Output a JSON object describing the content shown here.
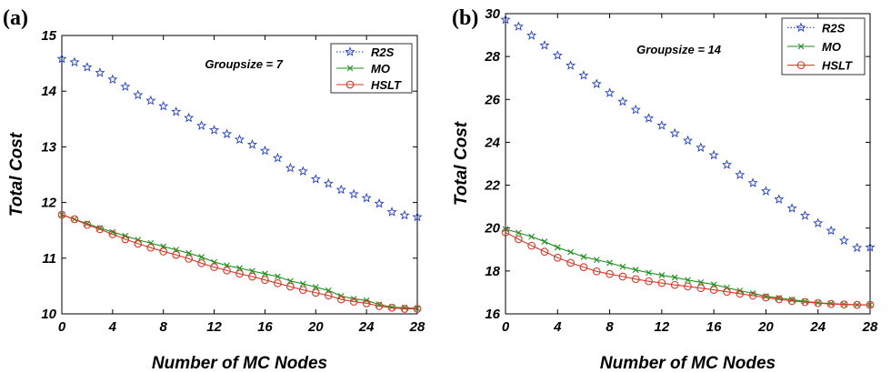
{
  "chart_data": [
    {
      "type": "line",
      "panel_label": "(a)",
      "annotation": "Groupsize = 7",
      "xlabel": "Number of MC Nodes",
      "ylabel": "Total Cost",
      "xlim": [
        0,
        28
      ],
      "ylim": [
        10,
        15
      ],
      "xticks": [
        0,
        4,
        8,
        12,
        16,
        20,
        24,
        28
      ],
      "yticks": [
        10,
        11,
        12,
        13,
        14,
        15
      ],
      "legend_position": "top-right",
      "x": [
        0,
        1,
        2,
        3,
        4,
        5,
        6,
        7,
        8,
        9,
        10,
        11,
        12,
        13,
        14,
        15,
        16,
        17,
        18,
        19,
        20,
        21,
        22,
        23,
        24,
        25,
        26,
        27,
        28
      ],
      "series": [
        {
          "name": "R2S",
          "marker": "star",
          "color": "#1f3fbf",
          "line": "dotted",
          "values": [
            14.58,
            14.52,
            14.43,
            14.33,
            14.21,
            14.08,
            13.93,
            13.83,
            13.73,
            13.63,
            13.52,
            13.38,
            13.3,
            13.23,
            13.13,
            13.04,
            12.93,
            12.8,
            12.62,
            12.56,
            12.42,
            12.34,
            12.23,
            12.15,
            12.08,
            11.98,
            11.83,
            11.77,
            11.74
          ]
        },
        {
          "name": "MO",
          "marker": "x",
          "color": "#1e8f1e",
          "line": "solid",
          "values": [
            11.78,
            11.7,
            11.62,
            11.54,
            11.47,
            11.4,
            11.33,
            11.27,
            11.21,
            11.15,
            11.09,
            11.02,
            10.93,
            10.87,
            10.82,
            10.77,
            10.72,
            10.67,
            10.59,
            10.54,
            10.48,
            10.42,
            10.32,
            10.27,
            10.24,
            10.17,
            10.12,
            10.11,
            10.1
          ]
        },
        {
          "name": "HSLT",
          "marker": "circle",
          "color": "#d43a2a",
          "line": "solid",
          "values": [
            11.78,
            11.7,
            11.6,
            11.52,
            11.43,
            11.34,
            11.26,
            11.19,
            11.12,
            11.06,
            10.99,
            10.91,
            10.84,
            10.78,
            10.72,
            10.67,
            10.61,
            10.55,
            10.49,
            10.43,
            10.38,
            10.33,
            10.26,
            10.22,
            10.19,
            10.14,
            10.11,
            10.09,
            10.09
          ]
        }
      ]
    },
    {
      "type": "line",
      "panel_label": "(b)",
      "annotation": "Groupsize = 14",
      "xlabel": "Number of MC Nodes",
      "ylabel": "Total Cost",
      "xlim": [
        0,
        28
      ],
      "ylim": [
        16,
        30
      ],
      "xticks": [
        0,
        4,
        8,
        12,
        16,
        20,
        24,
        28
      ],
      "yticks": [
        16,
        18,
        20,
        22,
        24,
        26,
        28,
        30
      ],
      "legend_position": "top-right",
      "x": [
        0,
        1,
        2,
        3,
        4,
        5,
        6,
        7,
        8,
        9,
        10,
        11,
        12,
        13,
        14,
        15,
        16,
        17,
        18,
        19,
        20,
        21,
        22,
        23,
        24,
        25,
        26,
        27,
        28
      ],
      "series": [
        {
          "name": "R2S",
          "marker": "star",
          "color": "#1f3fbf",
          "line": "dotted",
          "values": [
            29.72,
            29.4,
            28.98,
            28.52,
            28.05,
            27.58,
            27.12,
            26.72,
            26.3,
            25.9,
            25.52,
            25.12,
            24.78,
            24.42,
            24.08,
            23.75,
            23.4,
            22.95,
            22.48,
            22.1,
            21.72,
            21.34,
            20.92,
            20.58,
            20.23,
            19.88,
            19.42,
            19.08,
            19.1
          ]
        },
        {
          "name": "MO",
          "marker": "x",
          "color": "#1e8f1e",
          "line": "solid",
          "values": [
            19.95,
            19.78,
            19.6,
            19.37,
            19.1,
            18.88,
            18.66,
            18.52,
            18.38,
            18.2,
            18.05,
            17.92,
            17.8,
            17.7,
            17.58,
            17.47,
            17.37,
            17.22,
            17.08,
            16.96,
            16.82,
            16.74,
            16.66,
            16.58,
            16.52,
            16.48,
            16.45,
            16.42,
            16.42
          ]
        },
        {
          "name": "HSLT",
          "marker": "circle",
          "color": "#d43a2a",
          "line": "solid",
          "values": [
            19.8,
            19.48,
            19.18,
            18.9,
            18.62,
            18.38,
            18.18,
            17.98,
            17.86,
            17.74,
            17.62,
            17.52,
            17.44,
            17.35,
            17.28,
            17.2,
            17.12,
            17.03,
            16.94,
            16.85,
            16.76,
            16.68,
            16.6,
            16.55,
            16.5,
            16.46,
            16.44,
            16.42,
            16.42
          ]
        }
      ]
    }
  ]
}
